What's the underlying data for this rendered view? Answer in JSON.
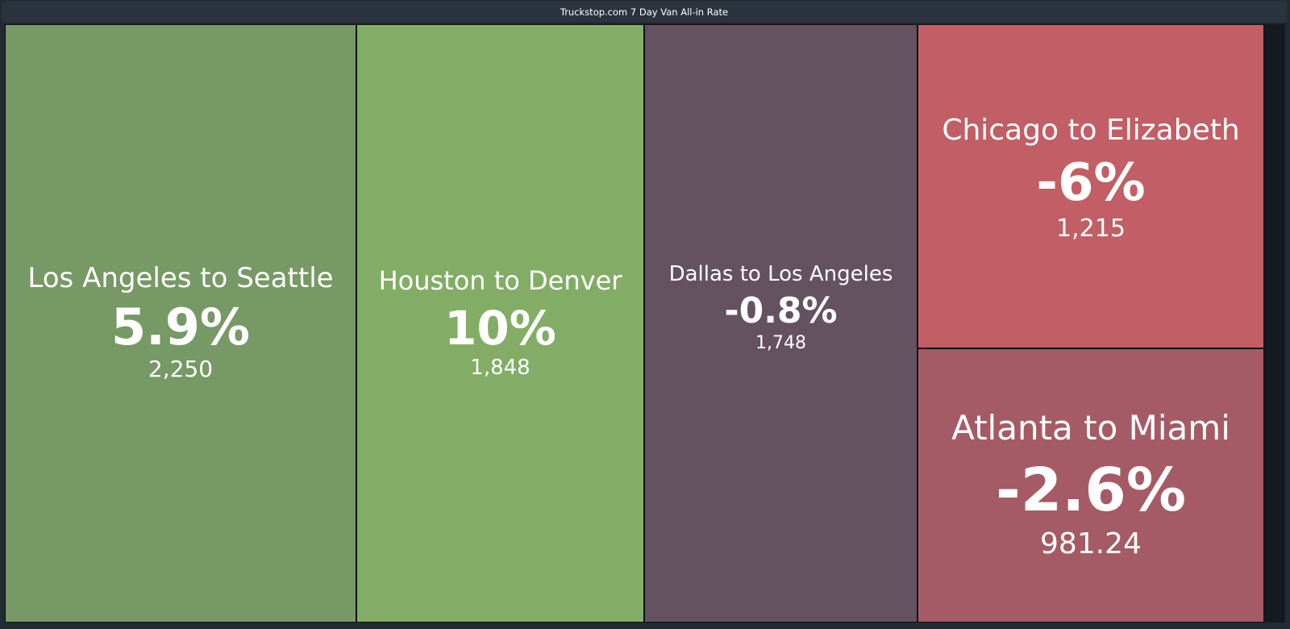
{
  "title": "Truckstop.com 7 Day Van All-in Rate",
  "chart_data": {
    "type": "treemap",
    "title": "Truckstop.com 7 Day Van All-in Rate",
    "items": [
      {
        "label": "Los Angeles to Seattle",
        "change": "5.9%",
        "value": "2,250",
        "color": "#779965"
      },
      {
        "label": "Houston to Denver",
        "change": "10%",
        "value": "1,848",
        "color": "#83ad66"
      },
      {
        "label": "Dallas to Los Angeles",
        "change": "-0.8%",
        "value": "1,748",
        "color": "#645260"
      },
      {
        "label": "Chicago to Elizabeth",
        "change": "-6%",
        "value": "1,215",
        "color": "#c25e65"
      },
      {
        "label": "Atlanta to Miami",
        "change": "-2.6%",
        "value": "981.24",
        "color": "#a55b65"
      }
    ]
  }
}
